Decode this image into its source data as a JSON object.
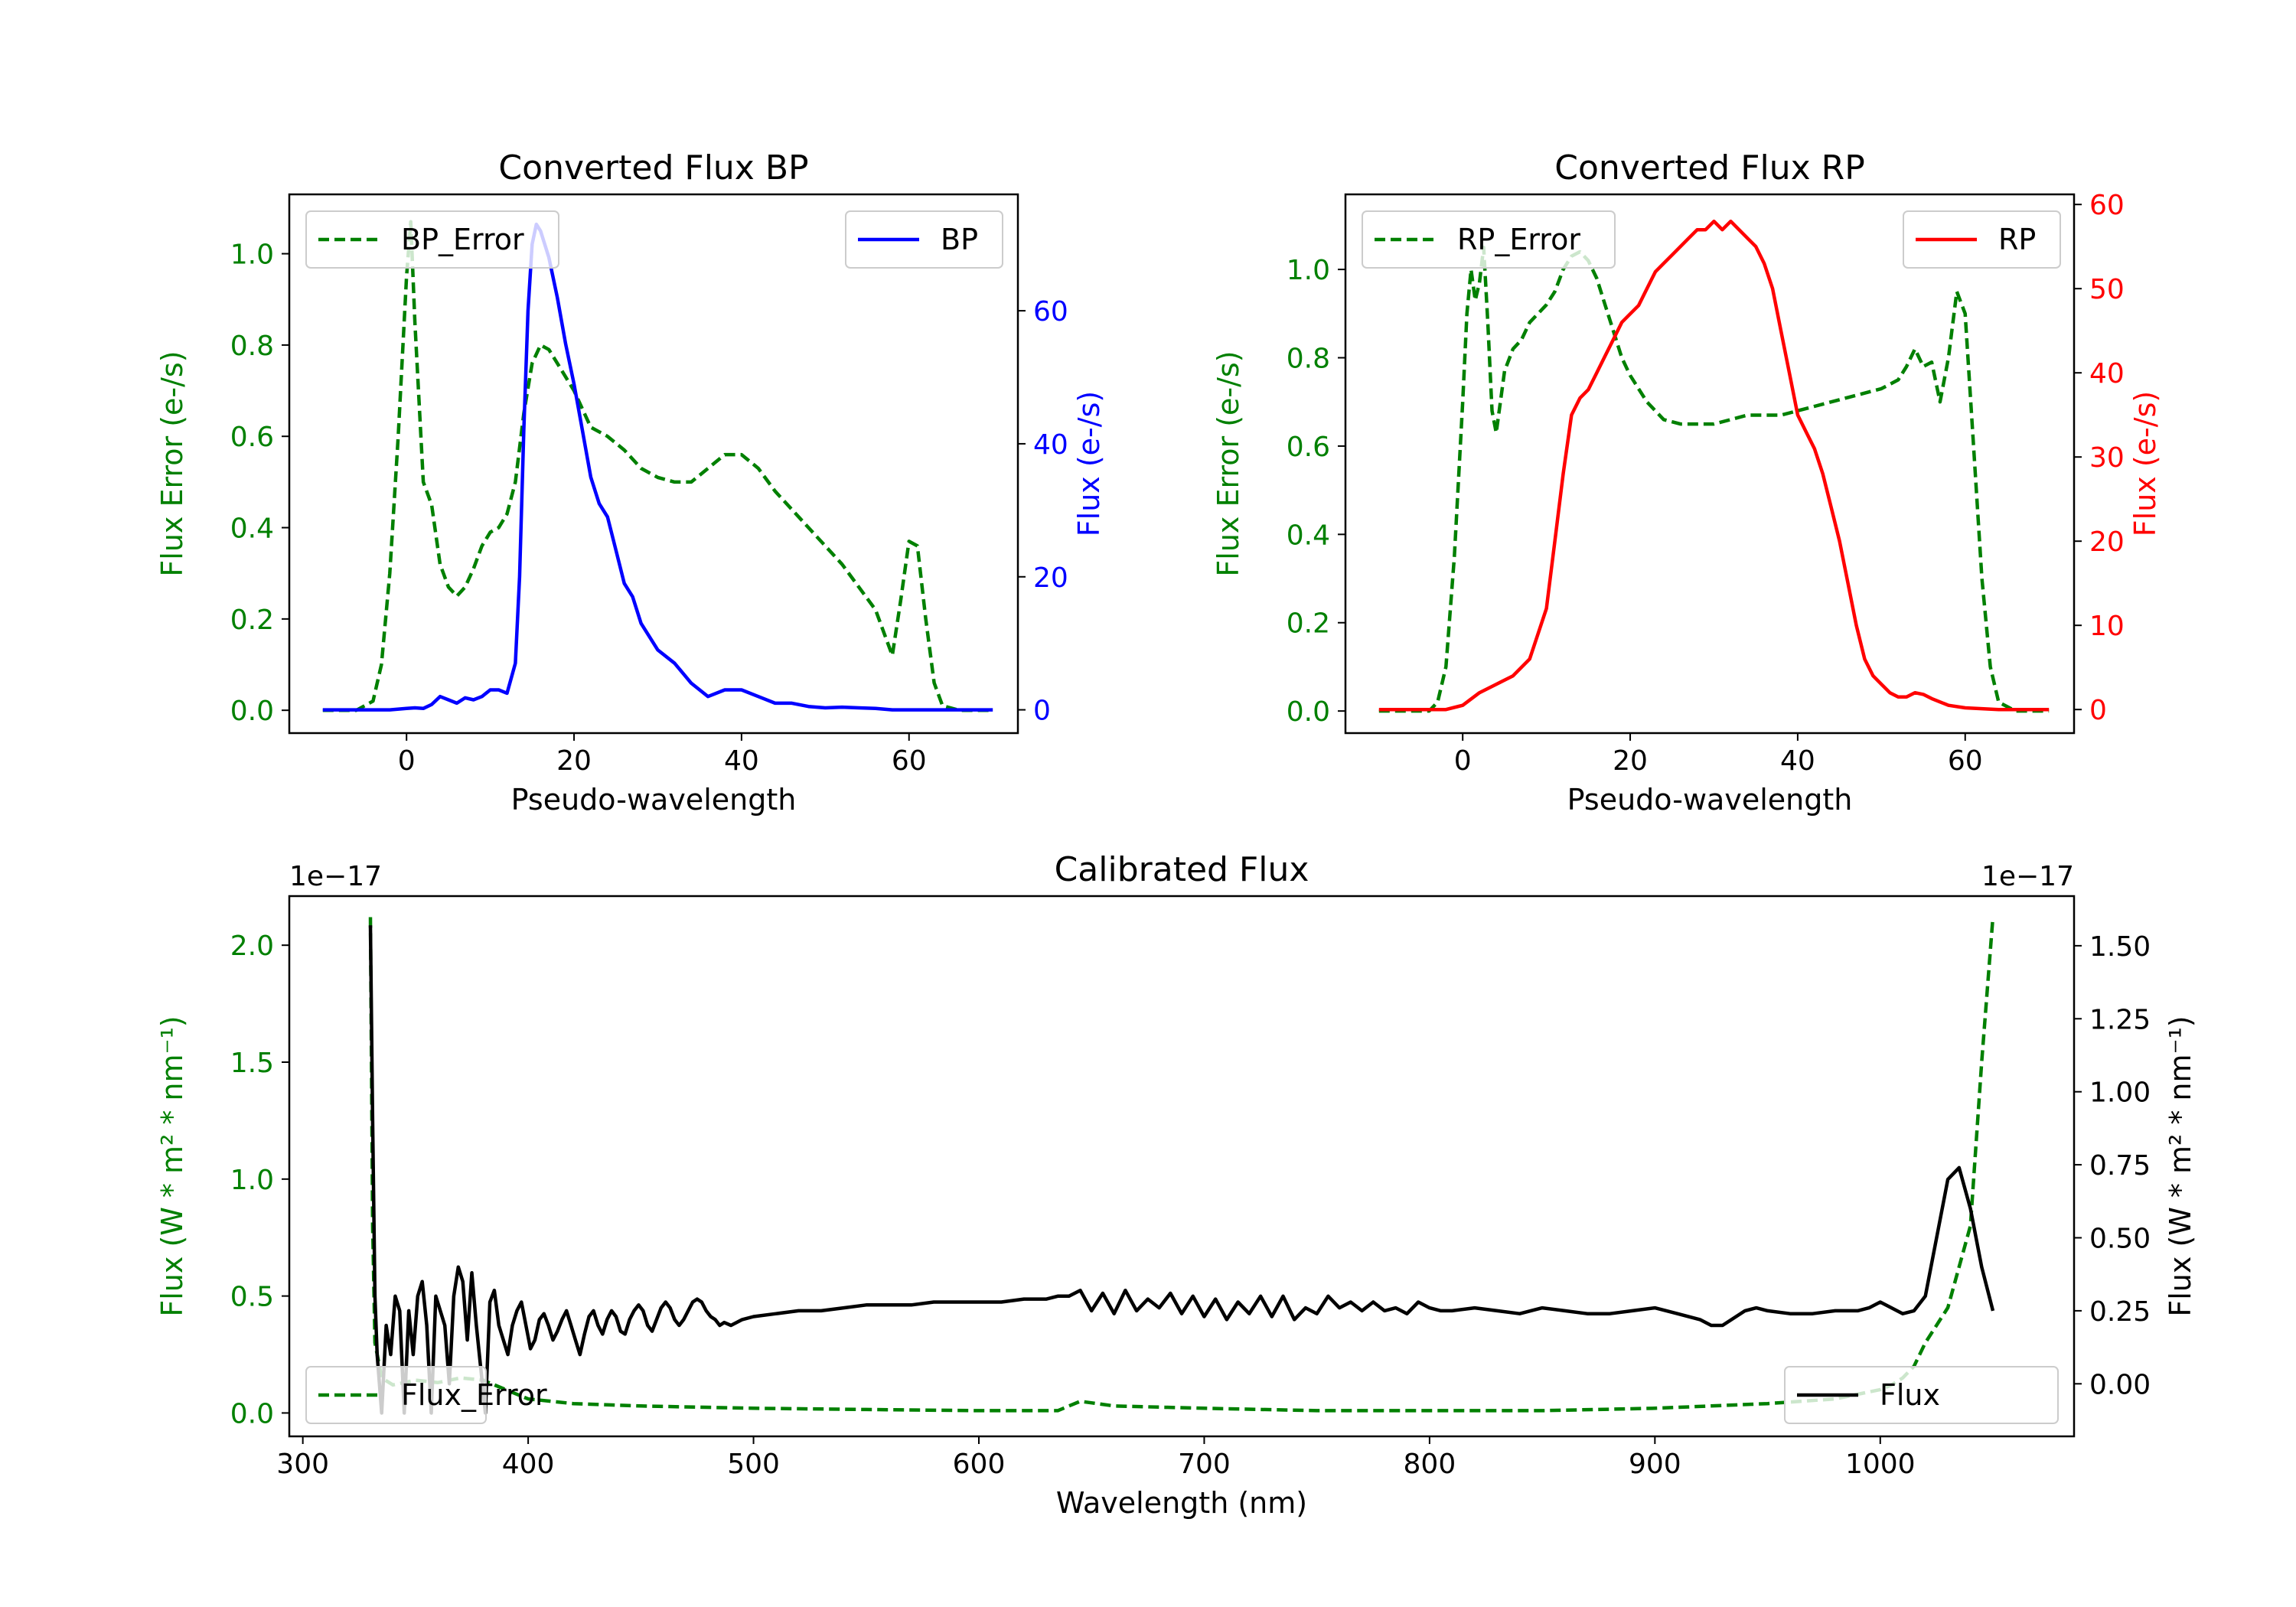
{
  "chart_data": [
    {
      "id": "bp",
      "type": "line",
      "title": "Converted Flux BP",
      "xlabel": "Pseudo-wavelength",
      "xlim": [
        -14,
        73
      ],
      "xticks": [
        0,
        20,
        40,
        60
      ],
      "left_axis": {
        "label": "Flux Error (e-/s)",
        "color": "#008000",
        "lim": [
          -0.05,
          1.13
        ],
        "ticks": [
          0.0,
          0.2,
          0.4,
          0.6,
          0.8,
          1.0
        ],
        "tick_labels": [
          "0.0",
          "0.2",
          "0.4",
          "0.6",
          "0.8",
          "1.0"
        ]
      },
      "right_axis": {
        "label": "Flux (e-/s)",
        "color": "#0000ff",
        "lim": [
          -3.5,
          77.5
        ],
        "ticks": [
          0,
          20,
          40,
          60
        ],
        "tick_labels": [
          "0",
          "20",
          "40",
          "60"
        ]
      },
      "series": [
        {
          "name": "BP_Error",
          "axis": "left",
          "color": "#008000",
          "style": "dashed",
          "x": [
            -10,
            -6,
            -4,
            -3,
            -2,
            -1,
            0,
            0.5,
            1,
            2,
            3,
            4,
            5,
            6,
            7,
            8,
            9,
            10,
            11,
            12,
            13,
            14,
            15,
            16,
            17,
            18,
            19,
            20,
            21,
            22,
            24,
            26,
            28,
            30,
            32,
            34,
            36,
            38,
            40,
            42,
            44,
            46,
            48,
            50,
            52,
            54,
            56,
            57,
            58,
            59,
            60,
            61,
            62,
            63,
            64,
            66,
            68,
            70
          ],
          "y": [
            0,
            0,
            0.02,
            0.1,
            0.3,
            0.6,
            0.95,
            1.07,
            0.85,
            0.5,
            0.45,
            0.32,
            0.27,
            0.25,
            0.27,
            0.31,
            0.36,
            0.39,
            0.4,
            0.43,
            0.5,
            0.65,
            0.76,
            0.8,
            0.79,
            0.76,
            0.73,
            0.7,
            0.66,
            0.62,
            0.6,
            0.57,
            0.53,
            0.51,
            0.5,
            0.5,
            0.53,
            0.56,
            0.56,
            0.53,
            0.48,
            0.44,
            0.4,
            0.36,
            0.32,
            0.27,
            0.22,
            0.17,
            0.12,
            0.24,
            0.37,
            0.36,
            0.2,
            0.06,
            0.01,
            0,
            0,
            0
          ]
        },
        {
          "name": "BP",
          "axis": "right",
          "color": "#0000ff",
          "style": "solid",
          "x": [
            -10,
            -6,
            -2,
            0,
            1,
            2,
            3,
            4,
            5,
            6,
            7,
            8,
            9,
            10,
            11,
            12,
            13,
            13.5,
            14,
            14.5,
            15,
            15.5,
            16,
            17,
            18,
            19,
            20,
            21,
            22,
            23,
            24,
            25,
            26,
            27,
            28,
            30,
            32,
            34,
            36,
            38,
            40,
            42,
            44,
            46,
            48,
            50,
            52,
            54,
            56,
            58,
            60,
            64,
            70
          ],
          "y": [
            0,
            0,
            0,
            0.2,
            0.3,
            0.2,
            0.8,
            2,
            1.5,
            1,
            1.8,
            1.5,
            2,
            3,
            3,
            2.5,
            7,
            20,
            42,
            60,
            70,
            73,
            72,
            68,
            62,
            55,
            49,
            42,
            35,
            31,
            29,
            24,
            19,
            17,
            13,
            9,
            7,
            4,
            2,
            3,
            3,
            2,
            1,
            1,
            0.5,
            0.3,
            0.4,
            0.3,
            0.2,
            0,
            0,
            0,
            0
          ]
        }
      ]
    },
    {
      "id": "rp",
      "type": "line",
      "title": "Converted Flux RP",
      "xlabel": "Pseudo-wavelength",
      "xlim": [
        -14,
        73
      ],
      "xticks": [
        0,
        20,
        40,
        60
      ],
      "left_axis": {
        "label": "Flux Error (e-/s)",
        "color": "#008000",
        "lim": [
          -0.05,
          1.17
        ],
        "ticks": [
          0.0,
          0.2,
          0.4,
          0.6,
          0.8,
          1.0
        ],
        "tick_labels": [
          "0.0",
          "0.2",
          "0.4",
          "0.6",
          "0.8",
          "1.0"
        ]
      },
      "right_axis": {
        "label": "Flux (e-/s)",
        "color": "#ff0000",
        "lim": [
          -2.8,
          61.2
        ],
        "ticks": [
          0,
          10,
          20,
          30,
          40,
          50,
          60
        ],
        "tick_labels": [
          "0",
          "10",
          "20",
          "30",
          "40",
          "50",
          "60"
        ]
      },
      "series": [
        {
          "name": "RP_Error",
          "axis": "left",
          "color": "#008000",
          "style": "dashed",
          "x": [
            -10,
            -4,
            -3,
            -2,
            -1,
            0,
            0.5,
            1,
            1.5,
            2,
            2.5,
            3,
            3.5,
            4,
            5,
            6,
            7,
            8,
            9,
            10,
            11,
            12,
            13,
            14,
            15,
            16,
            17,
            18,
            19,
            20,
            22,
            24,
            26,
            28,
            30,
            32,
            34,
            36,
            38,
            40,
            42,
            44,
            46,
            48,
            50,
            52,
            53,
            54,
            55,
            56,
            57,
            58,
            59,
            60,
            61,
            62,
            63,
            64,
            66,
            70
          ],
          "y": [
            0,
            0,
            0.02,
            0.1,
            0.35,
            0.7,
            0.9,
            1,
            0.93,
            0.97,
            1.05,
            0.88,
            0.68,
            0.63,
            0.77,
            0.82,
            0.84,
            0.88,
            0.9,
            0.92,
            0.95,
            1,
            1.03,
            1.04,
            1.02,
            0.98,
            0.92,
            0.86,
            0.8,
            0.76,
            0.7,
            0.66,
            0.65,
            0.65,
            0.65,
            0.66,
            0.67,
            0.67,
            0.67,
            0.68,
            0.69,
            0.7,
            0.71,
            0.72,
            0.73,
            0.75,
            0.78,
            0.82,
            0.78,
            0.79,
            0.7,
            0.8,
            0.95,
            0.9,
            0.6,
            0.3,
            0.1,
            0.02,
            0,
            0
          ]
        },
        {
          "name": "RP",
          "axis": "right",
          "color": "#ff0000",
          "style": "solid",
          "x": [
            -10,
            -4,
            -2,
            0,
            2,
            4,
            6,
            8,
            10,
            11,
            12,
            13,
            14,
            15,
            16,
            17,
            18,
            19,
            20,
            21,
            22,
            23,
            24,
            25,
            26,
            27,
            28,
            29,
            30,
            31,
            32,
            33,
            34,
            35,
            36,
            37,
            38,
            39,
            40,
            41,
            42,
            43,
            44,
            45,
            46,
            47,
            48,
            49,
            50,
            51,
            52,
            53,
            54,
            55,
            56,
            57,
            58,
            60,
            62,
            64,
            66,
            70
          ],
          "y": [
            0,
            0,
            0,
            0.5,
            2,
            3,
            4,
            6,
            12,
            20,
            28,
            35,
            37,
            38,
            40,
            42,
            44,
            46,
            47,
            48,
            50,
            52,
            53,
            54,
            55,
            56,
            57,
            57,
            58,
            57,
            58,
            57,
            56,
            55,
            53,
            50,
            45,
            40,
            35,
            33,
            31,
            28,
            24,
            20,
            15,
            10,
            6,
            4,
            3,
            2,
            1.5,
            1.5,
            2,
            1.8,
            1.3,
            0.9,
            0.5,
            0.2,
            0.1,
            0,
            0,
            0
          ]
        }
      ]
    },
    {
      "id": "cal",
      "type": "line",
      "title": "Calibrated Flux",
      "xlabel": "Wavelength (nm)",
      "xlim": [
        294,
        1086
      ],
      "xticks": [
        300,
        400,
        500,
        600,
        700,
        800,
        900,
        1000
      ],
      "left_axis": {
        "label": "Flux (W * m² * nm⁻¹)",
        "color": "#008000",
        "offset": "1e−17",
        "lim": [
          -0.1,
          2.21
        ],
        "ticks": [
          0.0,
          0.5,
          1.0,
          1.5,
          2.0
        ],
        "tick_labels": [
          "0.0",
          "0.5",
          "1.0",
          "1.5",
          "2.0"
        ]
      },
      "right_axis": {
        "label": "Flux (W * m² * nm⁻¹)",
        "color": "#000000",
        "offset": "1e−17",
        "lim": [
          -0.18,
          1.67
        ],
        "ticks": [
          0.0,
          0.25,
          0.5,
          0.75,
          1.0,
          1.25,
          1.5
        ],
        "tick_labels": [
          "0.00",
          "0.25",
          "0.50",
          "0.75",
          "1.00",
          "1.25",
          "1.50"
        ]
      },
      "series": [
        {
          "name": "Flux_Error",
          "axis": "left",
          "color": "#008000",
          "style": "dashed",
          "x": [
            330,
            331,
            332,
            335,
            340,
            345,
            350,
            360,
            370,
            380,
            390,
            400,
            420,
            450,
            500,
            550,
            600,
            635,
            645,
            660,
            700,
            750,
            800,
            850,
            900,
            950,
            980,
            1000,
            1005,
            1010,
            1015,
            1020,
            1030,
            1040,
            1045,
            1050
          ],
          "y": [
            2.12,
            0.8,
            0.3,
            0.15,
            0.12,
            0.13,
            0.14,
            0.13,
            0.15,
            0.14,
            0.1,
            0.06,
            0.04,
            0.03,
            0.02,
            0.015,
            0.01,
            0.01,
            0.05,
            0.03,
            0.02,
            0.01,
            0.01,
            0.01,
            0.02,
            0.04,
            0.06,
            0.1,
            0.12,
            0.15,
            0.2,
            0.3,
            0.45,
            0.8,
            1.5,
            2.12
          ]
        },
        {
          "name": "Flux",
          "axis": "right",
          "color": "#000000",
          "style": "solid",
          "x": [
            330,
            331,
            332,
            333,
            335,
            337,
            339,
            341,
            343,
            345,
            347,
            349,
            351,
            353,
            355,
            357,
            359,
            361,
            363,
            365,
            367,
            369,
            371,
            373,
            375,
            377,
            379,
            381,
            383,
            385,
            387,
            389,
            391,
            393,
            395,
            397,
            399,
            401,
            403,
            405,
            407,
            409,
            411,
            413,
            415,
            417,
            419,
            421,
            423,
            425,
            427,
            429,
            431,
            433,
            435,
            437,
            439,
            441,
            443,
            445,
            447,
            449,
            451,
            453,
            455,
            457,
            459,
            461,
            463,
            465,
            467,
            469,
            471,
            473,
            475,
            477,
            479,
            481,
            483,
            485,
            487,
            490,
            495,
            500,
            510,
            520,
            530,
            540,
            550,
            560,
            570,
            580,
            590,
            600,
            610,
            620,
            630,
            635,
            640,
            645,
            650,
            655,
            660,
            665,
            670,
            675,
            680,
            685,
            690,
            695,
            700,
            705,
            710,
            715,
            720,
            725,
            730,
            735,
            740,
            745,
            750,
            755,
            760,
            765,
            770,
            775,
            780,
            785,
            790,
            795,
            800,
            805,
            810,
            820,
            830,
            840,
            850,
            860,
            870,
            880,
            890,
            900,
            910,
            920,
            925,
            930,
            940,
            945,
            950,
            960,
            970,
            980,
            990,
            995,
            1000,
            1005,
            1010,
            1015,
            1020,
            1025,
            1030,
            1035,
            1040,
            1045,
            1050
          ],
          "y": [
            1.57,
            0.9,
            0.3,
            0.1,
            -0.1,
            0.2,
            0.1,
            0.3,
            0.25,
            -0.1,
            0.25,
            0.1,
            0.3,
            0.35,
            0.2,
            -0.1,
            0.3,
            0.25,
            0.2,
            0.0,
            0.3,
            0.4,
            0.35,
            0.15,
            0.38,
            0.2,
            0.05,
            -0.1,
            0.28,
            0.32,
            0.2,
            0.15,
            0.1,
            0.2,
            0.25,
            0.28,
            0.2,
            0.12,
            0.15,
            0.22,
            0.24,
            0.2,
            0.15,
            0.18,
            0.22,
            0.25,
            0.2,
            0.15,
            0.1,
            0.17,
            0.23,
            0.25,
            0.2,
            0.17,
            0.22,
            0.25,
            0.23,
            0.18,
            0.17,
            0.22,
            0.25,
            0.27,
            0.25,
            0.2,
            0.18,
            0.22,
            0.26,
            0.28,
            0.26,
            0.22,
            0.2,
            0.22,
            0.25,
            0.28,
            0.29,
            0.28,
            0.25,
            0.23,
            0.22,
            0.2,
            0.21,
            0.2,
            0.22,
            0.23,
            0.24,
            0.25,
            0.25,
            0.26,
            0.27,
            0.27,
            0.27,
            0.28,
            0.28,
            0.28,
            0.28,
            0.29,
            0.29,
            0.3,
            0.3,
            0.32,
            0.25,
            0.31,
            0.24,
            0.32,
            0.25,
            0.29,
            0.26,
            0.31,
            0.24,
            0.3,
            0.23,
            0.29,
            0.22,
            0.28,
            0.24,
            0.3,
            0.23,
            0.3,
            0.22,
            0.26,
            0.24,
            0.3,
            0.26,
            0.28,
            0.25,
            0.28,
            0.25,
            0.26,
            0.24,
            0.28,
            0.26,
            0.25,
            0.25,
            0.26,
            0.25,
            0.24,
            0.26,
            0.25,
            0.24,
            0.24,
            0.25,
            0.26,
            0.24,
            0.22,
            0.2,
            0.2,
            0.25,
            0.26,
            0.25,
            0.24,
            0.24,
            0.25,
            0.25,
            0.26,
            0.28,
            0.26,
            0.24,
            0.25,
            0.3,
            0.5,
            0.7,
            0.74,
            0.6,
            0.4,
            0.25
          ]
        }
      ]
    }
  ]
}
